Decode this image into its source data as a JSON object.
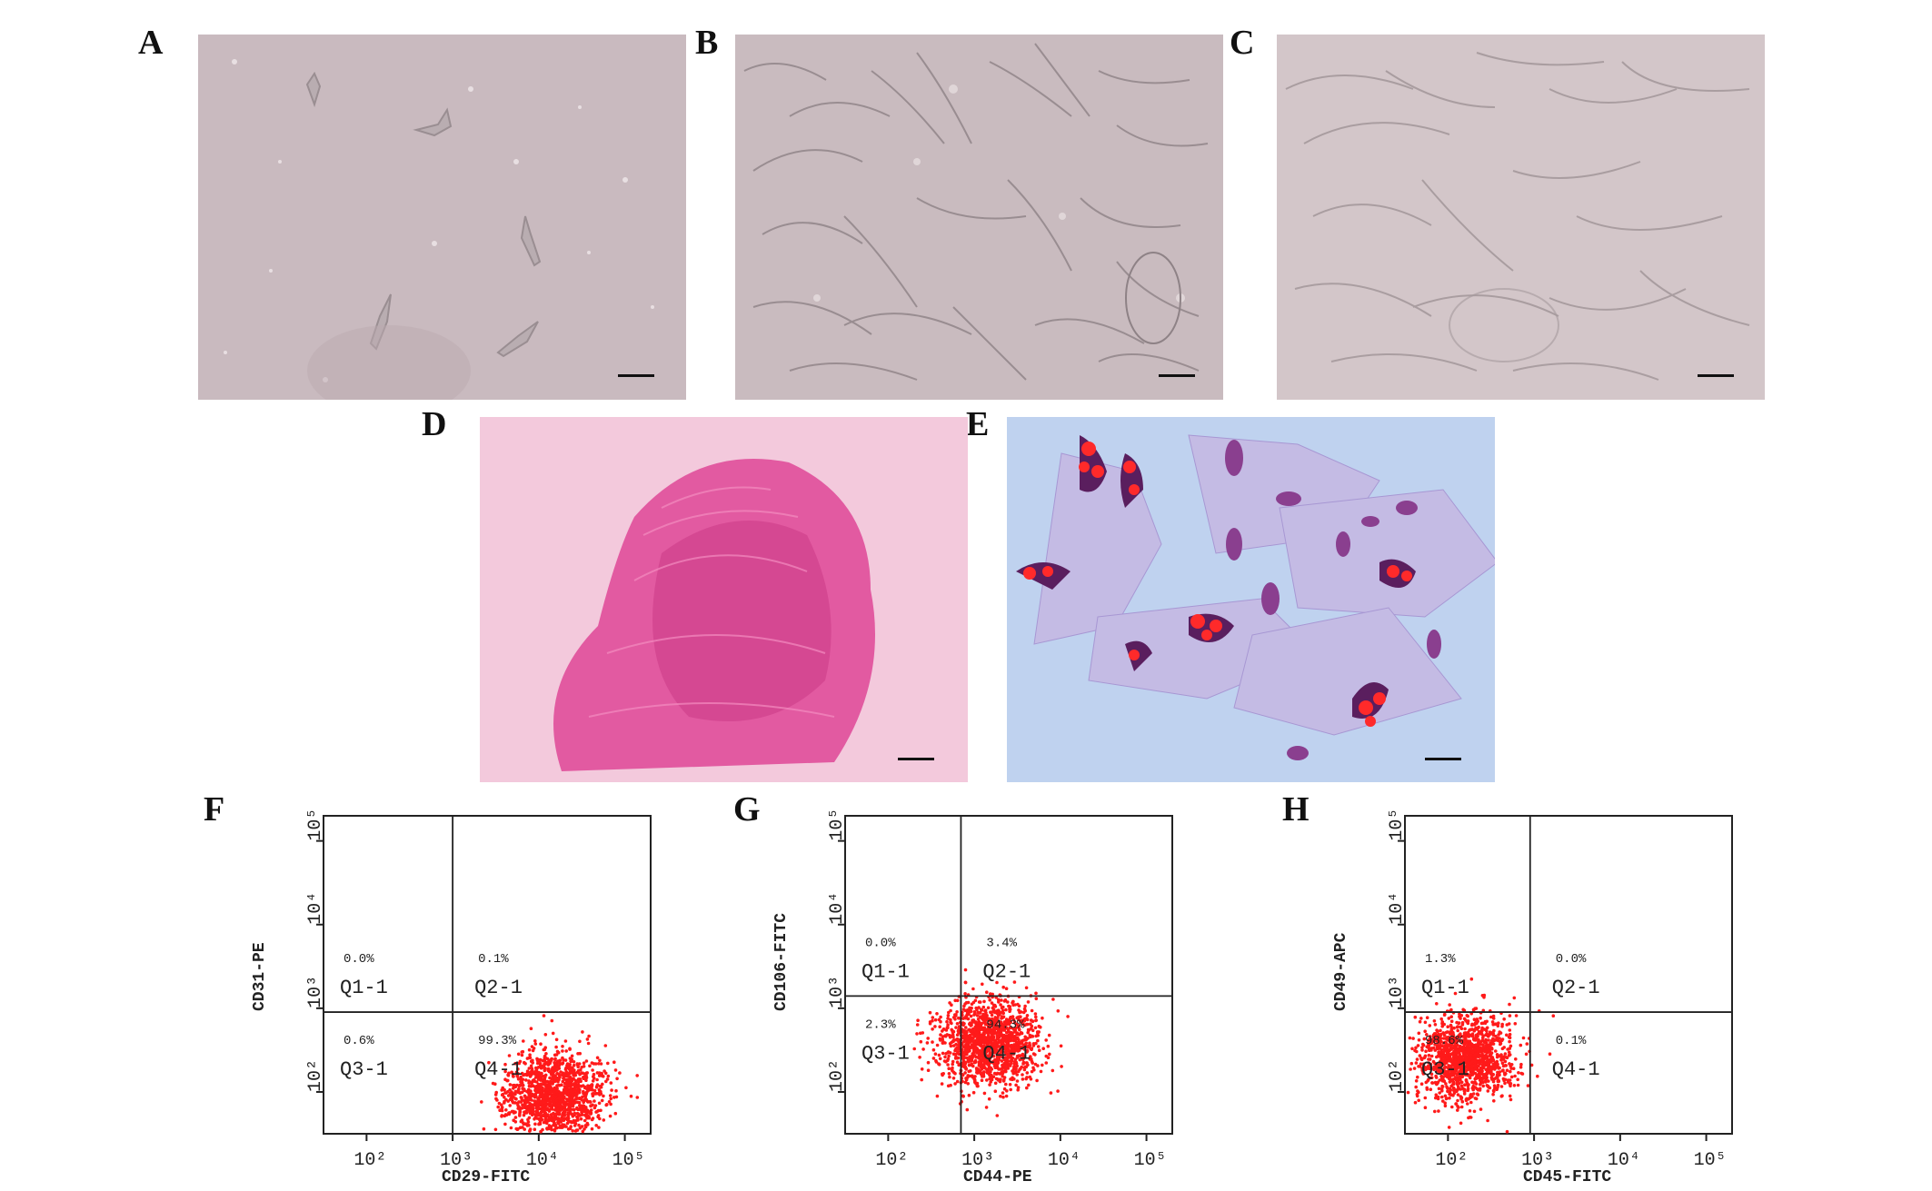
{
  "panels": {
    "A": {
      "letter": "A"
    },
    "B": {
      "letter": "B"
    },
    "C": {
      "letter": "C"
    },
    "D": {
      "letter": "D"
    },
    "E": {
      "letter": "E"
    },
    "F": {
      "letter": "F"
    },
    "G": {
      "letter": "G"
    },
    "H": {
      "letter": "H"
    }
  },
  "colors": {
    "phase_contrast_bg": "#cdbfc3",
    "pink_stain": "#e0559c",
    "blue_bg": "#bfd2ef",
    "red_dots": "#ff2a2a",
    "purple_cells": "#6a2a7a"
  },
  "chart_data": [
    {
      "type": "scatter",
      "panel": "F",
      "xlabel": "CD29-FITC",
      "ylabel": "CD31-PE",
      "x_ticks": [
        "10²",
        "10³",
        "10⁴",
        "10⁵"
      ],
      "y_ticks": [
        "10²",
        "10³",
        "10⁴",
        "10⁵"
      ],
      "gate": {
        "x": 1000,
        "y": 900
      },
      "quadrants": [
        {
          "name": "Q1-1",
          "percent": "0.0%"
        },
        {
          "name": "Q2-1",
          "percent": "0.1%"
        },
        {
          "name": "Q3-1",
          "percent": "0.6%"
        },
        {
          "name": "Q4-1",
          "percent": "99.3%"
        }
      ],
      "population_center": {
        "x": 15000,
        "y": 90
      }
    },
    {
      "type": "scatter",
      "panel": "G",
      "xlabel": "CD44-PE",
      "ylabel": "CD106-FITC",
      "x_ticks": [
        "10²",
        "10³",
        "10⁴",
        "10⁵"
      ],
      "y_ticks": [
        "10²",
        "10³",
        "10⁴",
        "10⁵"
      ],
      "gate": {
        "x": 700,
        "y": 1400
      },
      "quadrants": [
        {
          "name": "Q1-1",
          "percent": "0.0%"
        },
        {
          "name": "Q2-1",
          "percent": "3.4%"
        },
        {
          "name": "Q3-1",
          "percent": "2.3%"
        },
        {
          "name": "Q4-1",
          "percent": "94.3%"
        }
      ],
      "population_center": {
        "x": 1500,
        "y": 400
      }
    },
    {
      "type": "scatter",
      "panel": "H",
      "xlabel": "CD45-FITC",
      "ylabel": "CD49-APC",
      "x_ticks": [
        "10²",
        "10³",
        "10⁴",
        "10⁵"
      ],
      "y_ticks": [
        "10²",
        "10³",
        "10⁴",
        "10⁵"
      ],
      "gate": {
        "x": 900,
        "y": 900
      },
      "quadrants": [
        {
          "name": "Q1-1",
          "percent": "1.3%"
        },
        {
          "name": "Q2-1",
          "percent": "0.0%"
        },
        {
          "name": "Q3-1",
          "percent": "98.6%"
        },
        {
          "name": "Q4-1",
          "percent": "0.1%"
        }
      ],
      "population_center": {
        "x": 160,
        "y": 250
      }
    }
  ]
}
